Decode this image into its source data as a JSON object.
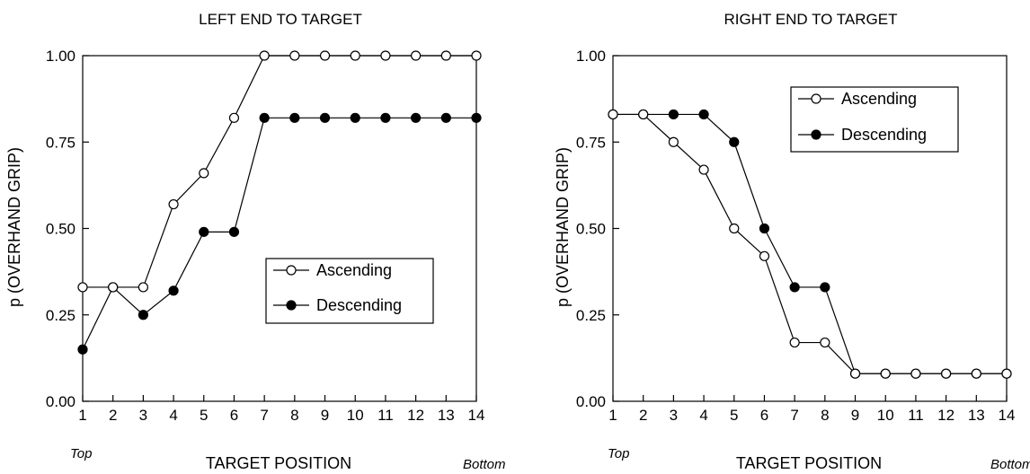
{
  "chart_data": [
    {
      "type": "line",
      "title": "LEFT END TO TARGET",
      "xlabel": "TARGET POSITION",
      "ylabel": "p (OVERHAND GRIP)",
      "x_start_label": "Top",
      "x_end_label": "Bottom",
      "x": [
        1,
        2,
        3,
        4,
        5,
        6,
        7,
        8,
        9,
        10,
        11,
        12,
        13,
        14
      ],
      "xlim": [
        1,
        14
      ],
      "ylim": [
        0,
        1
      ],
      "yticks": [
        "0.00",
        "0.25",
        "0.50",
        "0.75",
        "1.00"
      ],
      "grid": false,
      "legend_position": "center-right",
      "series": [
        {
          "name": "Ascending",
          "marker": "open-circle",
          "values": [
            0.33,
            0.33,
            0.33,
            0.57,
            0.66,
            0.82,
            1.0,
            1.0,
            1.0,
            1.0,
            1.0,
            1.0,
            1.0,
            1.0
          ]
        },
        {
          "name": "Descending",
          "marker": "filled-circle",
          "values": [
            0.15,
            0.33,
            0.25,
            0.32,
            0.49,
            0.49,
            0.82,
            0.82,
            0.82,
            0.82,
            0.82,
            0.82,
            0.82,
            0.82
          ]
        }
      ]
    },
    {
      "type": "line",
      "title": "RIGHT END TO TARGET",
      "xlabel": "TARGET POSITION",
      "ylabel": "p (OVERHAND GRIP)",
      "x_start_label": "Top",
      "x_end_label": "Bottom",
      "x": [
        1,
        2,
        3,
        4,
        5,
        6,
        7,
        8,
        9,
        10,
        11,
        12,
        13,
        14
      ],
      "xlim": [
        1,
        14
      ],
      "ylim": [
        0,
        1
      ],
      "yticks": [
        "0.00",
        "0.25",
        "0.50",
        "0.75",
        "1.00"
      ],
      "grid": false,
      "legend_position": "top-right",
      "series": [
        {
          "name": "Ascending",
          "marker": "open-circle",
          "values": [
            0.83,
            0.83,
            0.75,
            0.67,
            0.5,
            0.42,
            0.17,
            0.17,
            0.08,
            0.08,
            0.08,
            0.08,
            0.08,
            0.08
          ]
        },
        {
          "name": "Descending",
          "marker": "filled-circle",
          "values": [
            0.83,
            0.83,
            0.83,
            0.83,
            0.75,
            0.5,
            0.33,
            0.33,
            0.08,
            0.08,
            0.08,
            0.08,
            0.08,
            0.08
          ]
        }
      ]
    }
  ]
}
